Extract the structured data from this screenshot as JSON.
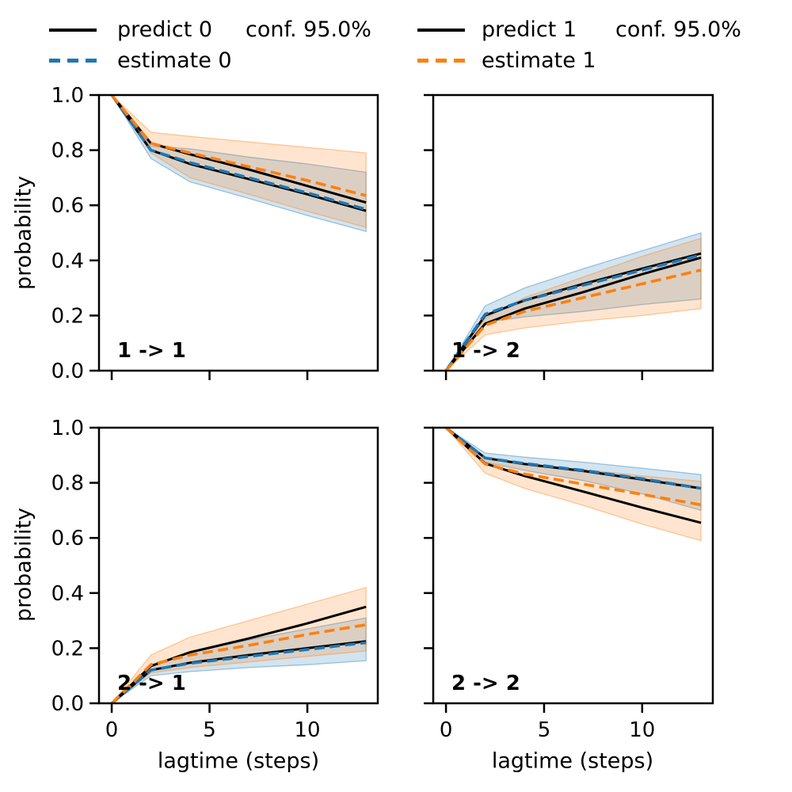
{
  "legend_left": {
    "predict_label": "predict 0",
    "conf_label": "conf. 95.0%",
    "estimate_label": "estimate 0"
  },
  "legend_right": {
    "predict_label": "predict 1",
    "conf_label": "conf. 95.0%",
    "estimate_label": "estimate 1"
  },
  "chart_data": {
    "type": "line",
    "xlabel": "lagtime (steps)",
    "ylabel": "probability",
    "xlim": [
      -0.65,
      13.6
    ],
    "ylim": [
      0,
      1
    ],
    "x_ticks": [
      0,
      5,
      10
    ],
    "x_tick_labels": [
      "0",
      "5",
      "10"
    ],
    "y_ticks": [
      0.0,
      0.2,
      0.4,
      0.6,
      0.8,
      1.0
    ],
    "y_tick_labels": [
      "0.0",
      "0.2",
      "0.4",
      "0.6",
      "0.8",
      "1.0"
    ],
    "grid": false,
    "legend_position": "top",
    "confidence": "95.0%",
    "colors": {
      "predict": "#000000",
      "estimate0": "#1f77b4",
      "estimate1": "#ff7f0e"
    },
    "band_fill_alpha": 0.2,
    "band_edge_alpha": 0.4,
    "x": [
      0,
      2,
      4,
      7,
      10,
      13
    ],
    "subplots": [
      {
        "id": "1-1",
        "label": "1 -> 1",
        "series": {
          "predict0": [
            1.0,
            0.8,
            0.75,
            0.695,
            0.64,
            0.58
          ],
          "estimate0": [
            1.0,
            0.8,
            0.755,
            0.7,
            0.645,
            0.585
          ],
          "predict1": [
            1.0,
            0.825,
            0.785,
            0.73,
            0.67,
            0.61
          ],
          "estimate1": [
            1.0,
            0.825,
            0.79,
            0.74,
            0.69,
            0.635
          ]
        },
        "bands": {
          "band0_lo": [
            1.0,
            0.77,
            0.685,
            0.625,
            0.563,
            0.505
          ],
          "band0_hi": [
            1.0,
            0.815,
            0.805,
            0.775,
            0.75,
            0.72
          ],
          "band1_lo": [
            1.0,
            0.79,
            0.7,
            0.64,
            0.578,
            0.52
          ],
          "band1_hi": [
            1.0,
            0.865,
            0.85,
            0.83,
            0.81,
            0.79
          ]
        }
      },
      {
        "id": "1-2",
        "label": "1 -> 2",
        "series": {
          "predict0": [
            0.0,
            0.2,
            0.255,
            0.315,
            0.37,
            0.425
          ],
          "estimate0": [
            0.0,
            0.205,
            0.255,
            0.31,
            0.365,
            0.42
          ],
          "predict1": [
            0.0,
            0.17,
            0.225,
            0.285,
            0.35,
            0.41
          ],
          "estimate1": [
            0.0,
            0.165,
            0.215,
            0.265,
            0.315,
            0.365
          ]
        },
        "bands": {
          "band0_lo": [
            0.0,
            0.175,
            0.195,
            0.215,
            0.24,
            0.26
          ],
          "band0_hi": [
            0.0,
            0.235,
            0.3,
            0.37,
            0.435,
            0.5
          ],
          "band1_lo": [
            0.0,
            0.13,
            0.155,
            0.18,
            0.2,
            0.225
          ],
          "band1_hi": [
            0.0,
            0.19,
            0.265,
            0.34,
            0.415,
            0.48
          ]
        }
      },
      {
        "id": "2-1",
        "label": "2 -> 1",
        "series": {
          "predict0": [
            0.0,
            0.12,
            0.147,
            0.175,
            0.2,
            0.225
          ],
          "estimate0": [
            0.0,
            0.12,
            0.145,
            0.17,
            0.195,
            0.22
          ],
          "predict1": [
            0.0,
            0.135,
            0.185,
            0.235,
            0.29,
            0.35
          ],
          "estimate1": [
            0.0,
            0.14,
            0.175,
            0.21,
            0.25,
            0.285
          ]
        },
        "bands": {
          "band0_lo": [
            0.0,
            0.1,
            0.115,
            0.13,
            0.14,
            0.155
          ],
          "band0_hi": [
            0.0,
            0.14,
            0.185,
            0.23,
            0.27,
            0.31
          ],
          "band1_lo": [
            0.0,
            0.11,
            0.13,
            0.15,
            0.17,
            0.19
          ],
          "band1_hi": [
            0.0,
            0.175,
            0.24,
            0.3,
            0.36,
            0.42
          ]
        }
      },
      {
        "id": "2-2",
        "label": "2 -> 2",
        "series": {
          "predict0": [
            1.0,
            0.89,
            0.868,
            0.843,
            0.812,
            0.78
          ],
          "estimate0": [
            1.0,
            0.89,
            0.87,
            0.845,
            0.815,
            0.78
          ],
          "predict1": [
            1.0,
            0.87,
            0.825,
            0.768,
            0.71,
            0.655
          ],
          "estimate1": [
            1.0,
            0.868,
            0.832,
            0.795,
            0.758,
            0.72
          ]
        },
        "bands": {
          "band0_lo": [
            1.0,
            0.875,
            0.845,
            0.808,
            0.76,
            0.7
          ],
          "band0_hi": [
            1.0,
            0.908,
            0.893,
            0.875,
            0.853,
            0.83
          ],
          "band1_lo": [
            1.0,
            0.835,
            0.78,
            0.718,
            0.65,
            0.59
          ],
          "band1_hi": [
            1.0,
            0.888,
            0.868,
            0.848,
            0.825,
            0.805
          ]
        }
      }
    ]
  }
}
